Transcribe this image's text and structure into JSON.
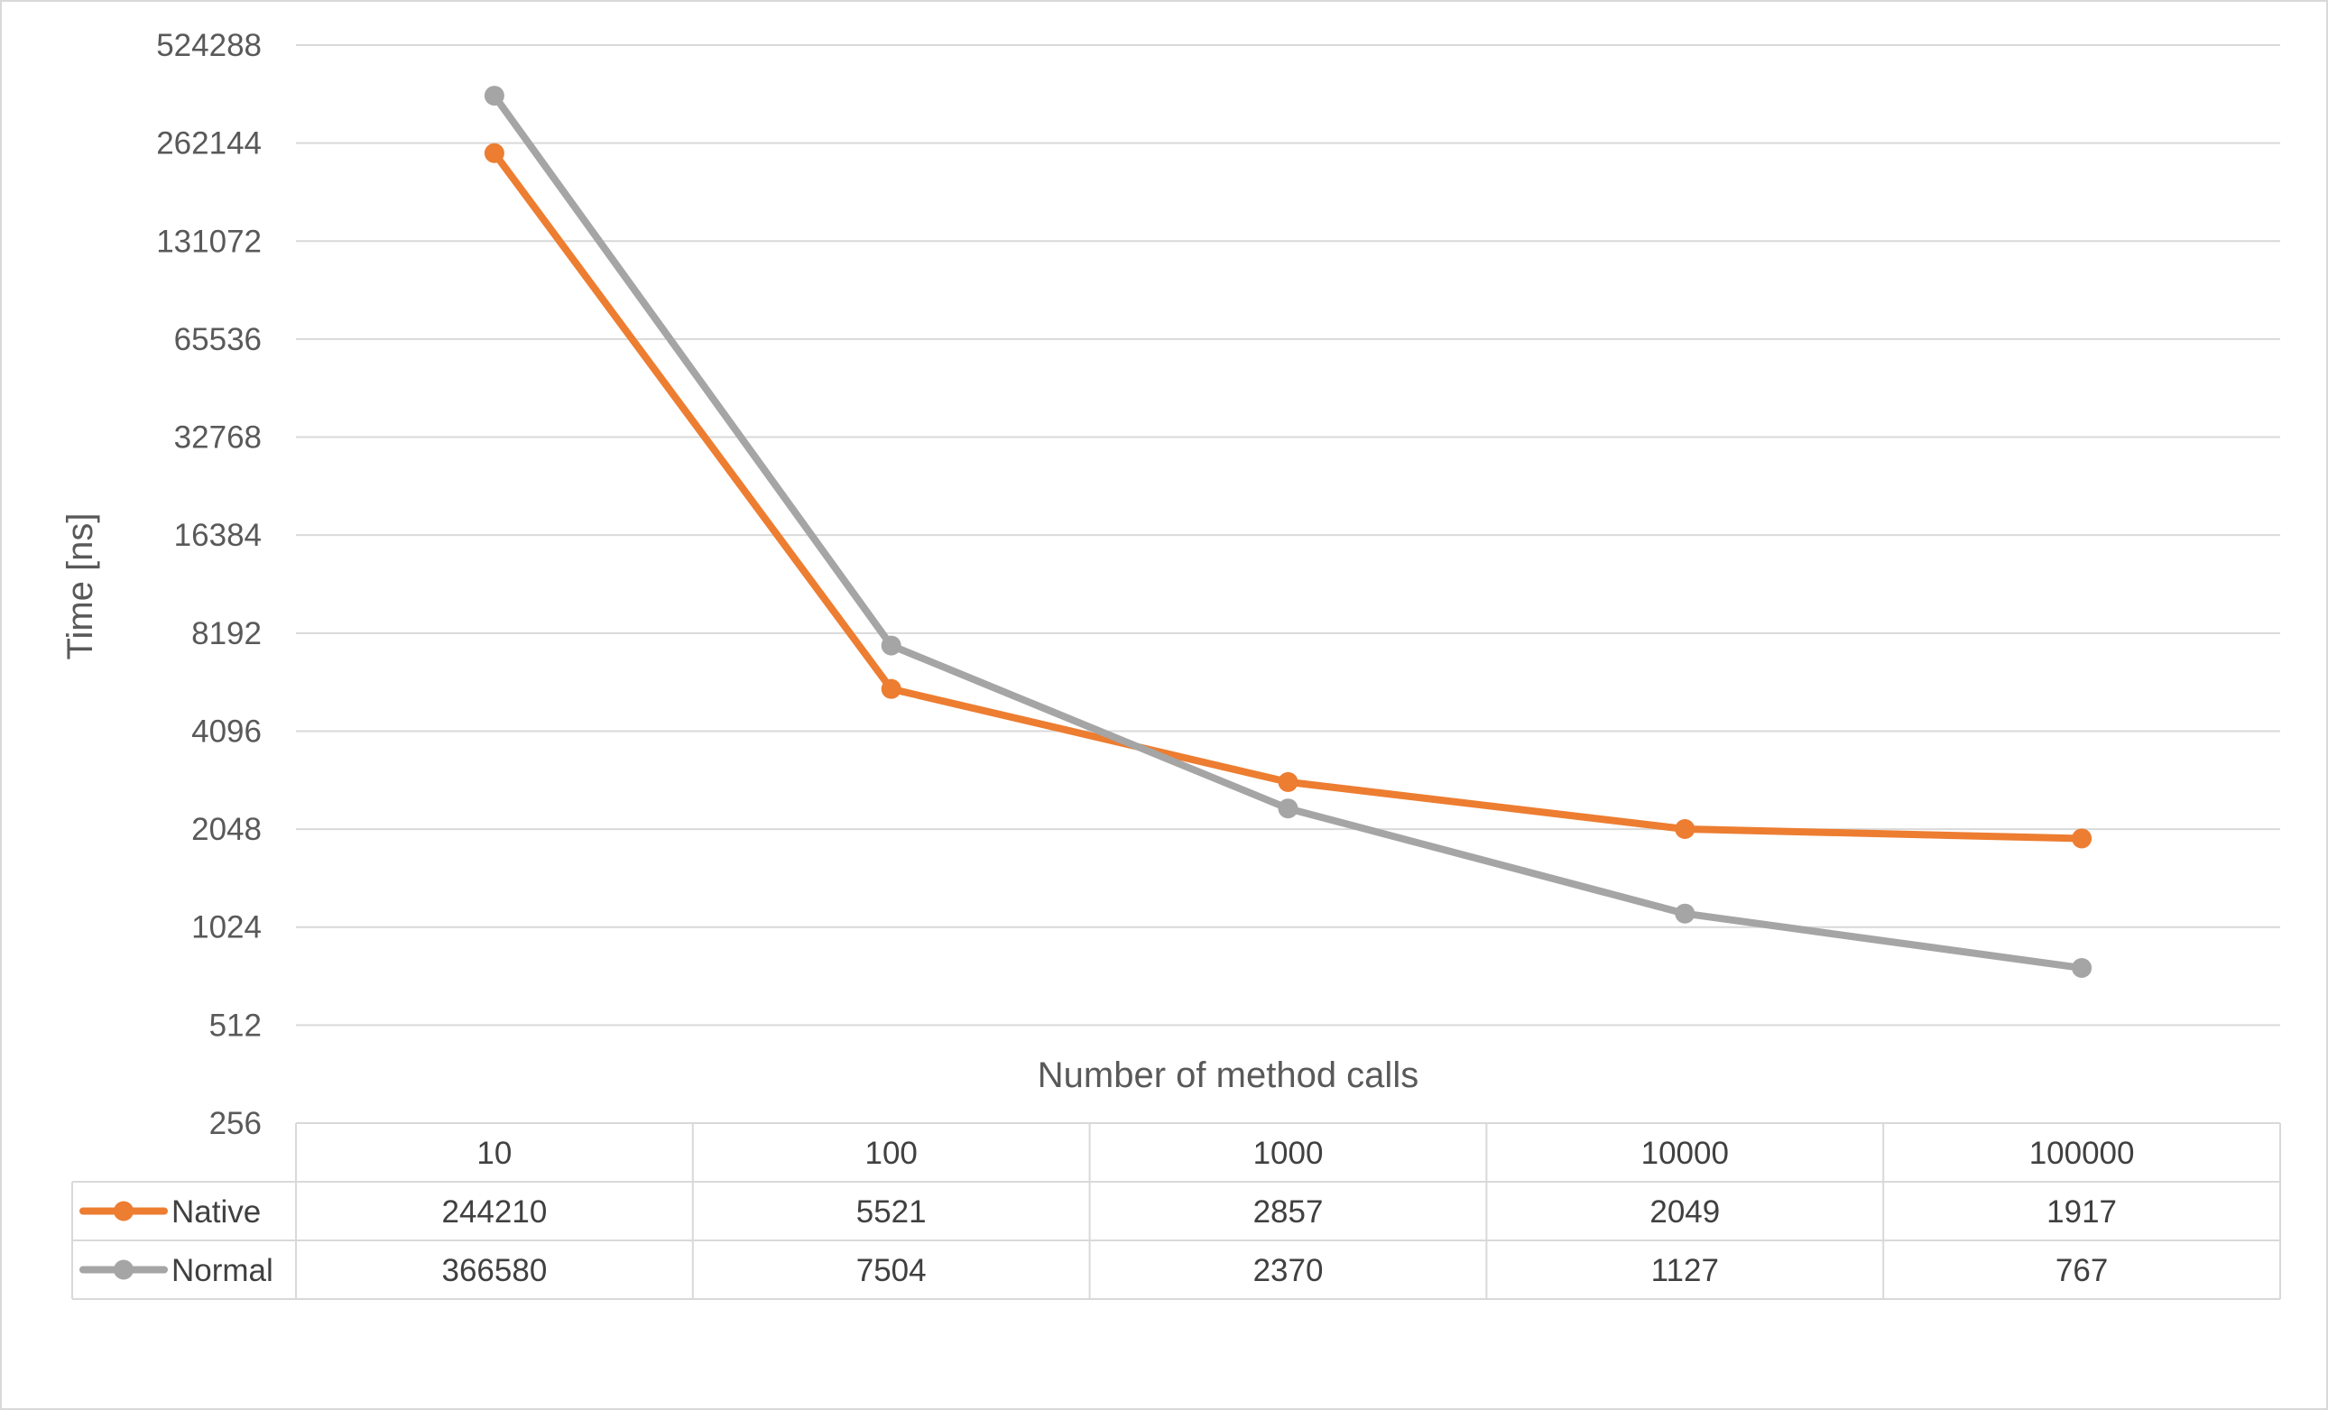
{
  "chart_data": {
    "type": "line",
    "ylabel": "Time [ns]",
    "xlabel": "Number of method calls",
    "yscale": "log2",
    "ylim": [
      256,
      524288
    ],
    "yticks": [
      "524288",
      "262144",
      "131072",
      "65536",
      "32768",
      "16384",
      "8192",
      "4096",
      "2048",
      "1024",
      "512",
      "256"
    ],
    "categories": [
      "10",
      "100",
      "1000",
      "10000",
      "100000"
    ],
    "grid": true,
    "legend": "data-table",
    "series": [
      {
        "name": "Native",
        "color": "#ed7d31",
        "values": [
          244210,
          5521,
          2857,
          2049,
          1917
        ]
      },
      {
        "name": "Normal",
        "color": "#a5a5a5",
        "values": [
          366580,
          7504,
          2370,
          1127,
          767
        ]
      }
    ],
    "data_table": {
      "rows": [
        {
          "name": "Native",
          "cells": [
            "244210",
            "5521",
            "2857",
            "2049",
            "1917"
          ]
        },
        {
          "name": "Normal",
          "cells": [
            "366580",
            "7504",
            "2370",
            "1127",
            "767"
          ]
        }
      ]
    }
  }
}
